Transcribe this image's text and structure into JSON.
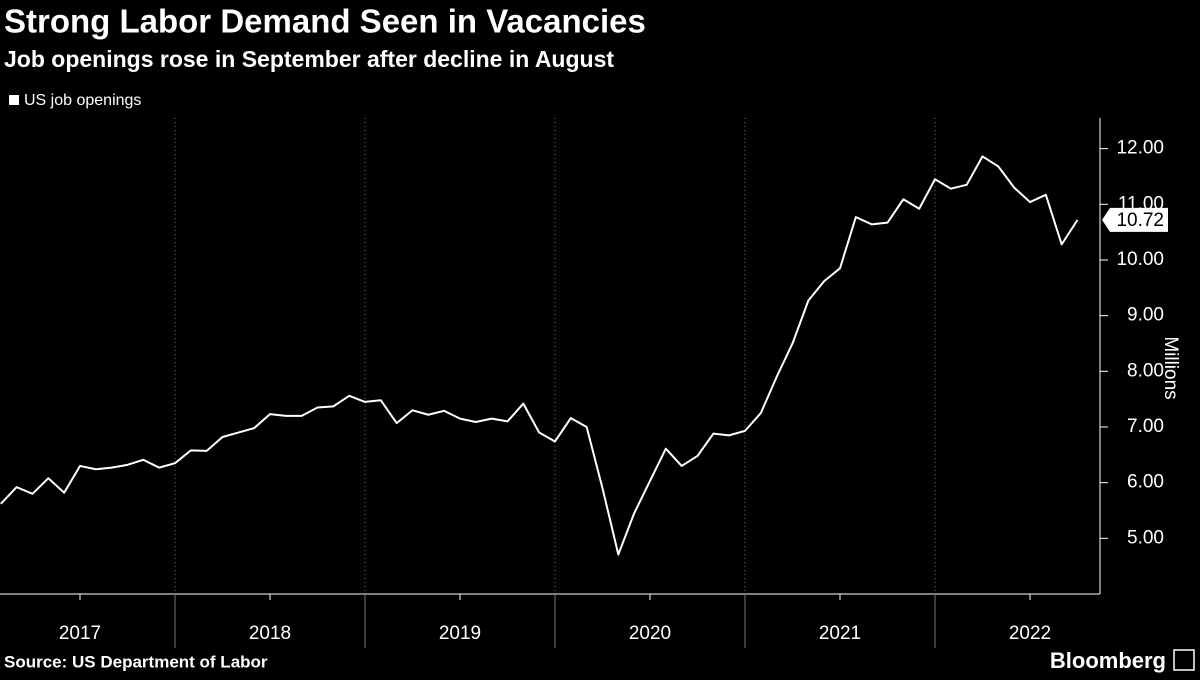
{
  "chart_data": {
    "type": "line",
    "title": "Strong Labor Demand Seen in Vacancies",
    "subtitle": "Job openings rose in September after decline in August",
    "y_axis_label": "Millions",
    "source": "Source: US Department of Labor",
    "brand": "Bloomberg",
    "x": [
      "2017-01",
      "2017-02",
      "2017-03",
      "2017-04",
      "2017-05",
      "2017-06",
      "2017-07",
      "2017-08",
      "2017-09",
      "2017-10",
      "2017-11",
      "2017-12",
      "2018-01",
      "2018-02",
      "2018-03",
      "2018-04",
      "2018-05",
      "2018-06",
      "2018-07",
      "2018-08",
      "2018-09",
      "2018-10",
      "2018-11",
      "2018-12",
      "2019-01",
      "2019-02",
      "2019-03",
      "2019-04",
      "2019-05",
      "2019-06",
      "2019-07",
      "2019-08",
      "2019-09",
      "2019-10",
      "2019-11",
      "2019-12",
      "2020-01",
      "2020-02",
      "2020-03",
      "2020-04",
      "2020-05",
      "2020-06",
      "2020-07",
      "2020-08",
      "2020-09",
      "2020-10",
      "2020-11",
      "2020-12",
      "2021-01",
      "2021-02",
      "2021-03",
      "2021-04",
      "2021-05",
      "2021-06",
      "2021-07",
      "2021-08",
      "2021-09",
      "2021-10",
      "2021-11",
      "2021-12",
      "2022-01",
      "2022-02",
      "2022-03",
      "2022-04",
      "2022-05",
      "2022-06",
      "2022-07",
      "2022-08",
      "2022-09"
    ],
    "series": [
      {
        "name": "US job openings",
        "color": "#ffffff",
        "values": [
          5.62,
          5.92,
          5.8,
          6.08,
          5.82,
          6.3,
          6.24,
          6.27,
          6.32,
          6.41,
          6.27,
          6.35,
          6.58,
          6.57,
          6.82,
          6.9,
          6.98,
          7.23,
          7.2,
          7.2,
          7.35,
          7.37,
          7.56,
          7.45,
          7.48,
          7.07,
          7.3,
          7.22,
          7.29,
          7.15,
          7.09,
          7.15,
          7.1,
          7.42,
          6.9,
          6.74,
          7.16,
          7.0,
          5.9,
          4.71,
          5.45,
          6.03,
          6.61,
          6.3,
          6.48,
          6.88,
          6.85,
          6.93,
          7.25,
          7.9,
          8.5,
          9.27,
          9.62,
          9.85,
          10.77,
          10.64,
          10.67,
          11.09,
          10.92,
          11.45,
          11.28,
          11.35,
          11.86,
          11.68,
          11.3,
          11.04,
          11.17,
          10.28,
          10.72
        ]
      }
    ],
    "xlim": [
      "2016-12",
      "2022-12"
    ],
    "xticks": [
      2017,
      2018,
      2019,
      2020,
      2021,
      2022
    ],
    "ylim": [
      4,
      12.55
    ],
    "yticks": [
      {
        "value": 5,
        "label": "5.00"
      },
      {
        "value": 6,
        "label": "6.00"
      },
      {
        "value": 7,
        "label": "7.00"
      },
      {
        "value": 8,
        "label": "8.00"
      },
      {
        "value": 9,
        "label": "9.00"
      },
      {
        "value": 10,
        "label": "10.00"
      },
      {
        "value": 11,
        "label": "11.00"
      },
      {
        "value": 12,
        "label": "12.00"
      }
    ]
  }
}
